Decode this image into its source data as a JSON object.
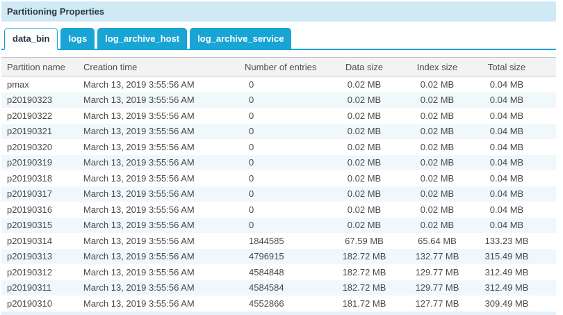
{
  "panel": {
    "title": "Partitioning Properties"
  },
  "tabs": [
    {
      "label": "data_bin",
      "active": true
    },
    {
      "label": "logs",
      "active": false
    },
    {
      "label": "log_archive_host",
      "active": false
    },
    {
      "label": "log_archive_service",
      "active": false
    }
  ],
  "table": {
    "columns": [
      "Partition name",
      "Creation time",
      "Number of entries",
      "Data size",
      "Index size",
      "Total size"
    ],
    "column_keys": [
      "partition-name",
      "creation-time",
      "number-of-entries",
      "data-size",
      "index-size",
      "total-size"
    ],
    "rows": [
      [
        "pmax",
        "March 13, 2019 3:55:56 AM",
        "0",
        "0.02 MB",
        "0.02 MB",
        "0.04 MB"
      ],
      [
        "p20190323",
        "March 13, 2019 3:55:56 AM",
        "0",
        "0.02 MB",
        "0.02 MB",
        "0.04 MB"
      ],
      [
        "p20190322",
        "March 13, 2019 3:55:56 AM",
        "0",
        "0.02 MB",
        "0.02 MB",
        "0.04 MB"
      ],
      [
        "p20190321",
        "March 13, 2019 3:55:56 AM",
        "0",
        "0.02 MB",
        "0.02 MB",
        "0.04 MB"
      ],
      [
        "p20190320",
        "March 13, 2019 3:55:56 AM",
        "0",
        "0.02 MB",
        "0.02 MB",
        "0.04 MB"
      ],
      [
        "p20190319",
        "March 13, 2019 3:55:56 AM",
        "0",
        "0.02 MB",
        "0.02 MB",
        "0.04 MB"
      ],
      [
        "p20190318",
        "March 13, 2019 3:55:56 AM",
        "0",
        "0.02 MB",
        "0.02 MB",
        "0.04 MB"
      ],
      [
        "p20190317",
        "March 13, 2019 3:55:56 AM",
        "0",
        "0.02 MB",
        "0.02 MB",
        "0.04 MB"
      ],
      [
        "p20190316",
        "March 13, 2019 3:55:56 AM",
        "0",
        "0.02 MB",
        "0.02 MB",
        "0.04 MB"
      ],
      [
        "p20190315",
        "March 13, 2019 3:55:56 AM",
        "0",
        "0.02 MB",
        "0.02 MB",
        "0.04 MB"
      ],
      [
        "p20190314",
        "March 13, 2019 3:55:56 AM",
        "1844585",
        "67.59 MB",
        "65.64 MB",
        "133.23 MB"
      ],
      [
        "p20190313",
        "March 13, 2019 3:55:56 AM",
        "4796915",
        "182.72 MB",
        "132.77 MB",
        "315.49 MB"
      ],
      [
        "p20190312",
        "March 13, 2019 3:55:56 AM",
        "4584848",
        "182.72 MB",
        "129.77 MB",
        "312.49 MB"
      ],
      [
        "p20190311",
        "March 13, 2019 3:55:56 AM",
        "4584584",
        "182.72 MB",
        "129.77 MB",
        "312.49 MB"
      ],
      [
        "p20190310",
        "March 13, 2019 3:55:56 AM",
        "4552866",
        "181.72 MB",
        "127.77 MB",
        "309.49 MB"
      ]
    ]
  },
  "colors": {
    "accent_blue": "#18a5d6",
    "title_bar_bg": "#cfe9f5",
    "alt_row_bg": "#f0f8fc",
    "partial_row_bg": "#e4f1fa",
    "header_row_bg": "#f3f3f3"
  }
}
